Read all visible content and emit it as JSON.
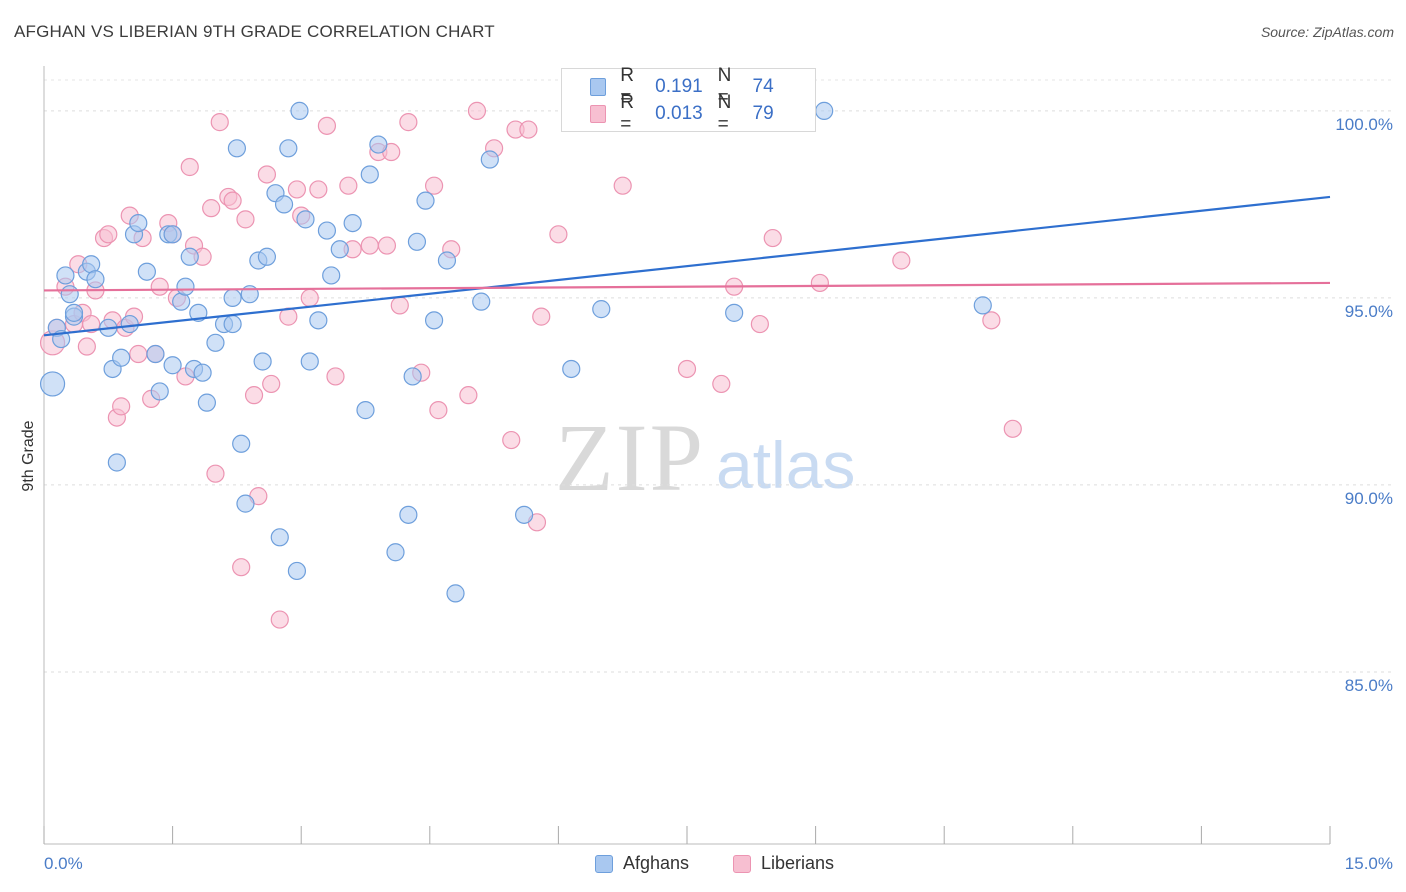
{
  "header": {
    "title": "AFGHAN VS LIBERIAN 9TH GRADE CORRELATION CHART",
    "source": "Source: ZipAtlas.com"
  },
  "watermark": {
    "zip": "ZIP",
    "atlas": "atlas"
  },
  "legend": {
    "afghans": {
      "r_label": "R =",
      "r_value": "0.191",
      "n_label": "N =",
      "n_value": "74"
    },
    "liberians": {
      "r_label": "R =",
      "r_value": "0.013",
      "n_label": "N =",
      "n_value": "79"
    }
  },
  "bottom_legend": {
    "afghans": "Afghans",
    "liberians": "Liberians"
  },
  "colors": {
    "afghans_fill": "#a9c8f0",
    "afghans_stroke": "#6e9fdc",
    "afghans_line": "#2e6fcf",
    "liberians_fill": "#f7bfd1",
    "liberians_stroke": "#ec94b2",
    "liberians_line": "#e5709a",
    "tick_label": "#4a7cc7"
  },
  "chart_data": {
    "type": "scatter",
    "title": "AFGHAN VS LIBERIAN 9TH GRADE CORRELATION CHART",
    "xlabel": "",
    "ylabel": "9th Grade",
    "xlim": [
      0,
      15
    ],
    "ylim": [
      80.4,
      101.2
    ],
    "x_tick_labels": [
      "0.0%",
      "15.0%"
    ],
    "y_ticks": [
      85,
      90,
      95,
      100
    ],
    "y_tick_labels": [
      "85.0%",
      "90.0%",
      "95.0%",
      "100.0%"
    ],
    "grid": true,
    "legend_position": "top-center",
    "series": [
      {
        "name": "Afghans",
        "trend": [
          [
            0,
            94.0
          ],
          [
            15,
            97.7
          ]
        ],
        "points": [
          [
            0.1,
            92.7
          ],
          [
            0.15,
            94.2
          ],
          [
            0.2,
            93.9
          ],
          [
            0.25,
            95.6
          ],
          [
            0.3,
            95.1
          ],
          [
            0.35,
            94.5
          ],
          [
            0.5,
            95.7
          ],
          [
            0.55,
            95.9
          ],
          [
            0.6,
            95.5
          ],
          [
            0.75,
            94.2
          ],
          [
            0.8,
            93.1
          ],
          [
            0.9,
            93.4
          ],
          [
            1.0,
            94.3
          ],
          [
            1.05,
            96.7
          ],
          [
            1.1,
            97.0
          ],
          [
            1.2,
            95.7
          ],
          [
            1.3,
            93.5
          ],
          [
            1.35,
            92.5
          ],
          [
            1.45,
            96.7
          ],
          [
            1.5,
            93.2
          ],
          [
            1.6,
            94.9
          ],
          [
            1.65,
            95.3
          ],
          [
            1.7,
            96.1
          ],
          [
            1.75,
            93.1
          ],
          [
            1.8,
            94.6
          ],
          [
            1.85,
            93.0
          ],
          [
            1.9,
            92.2
          ],
          [
            2.0,
            93.8
          ],
          [
            2.1,
            94.3
          ],
          [
            2.2,
            94.3
          ],
          [
            2.25,
            99.0
          ],
          [
            2.3,
            91.1
          ],
          [
            2.35,
            89.5
          ],
          [
            2.4,
            95.1
          ],
          [
            2.5,
            96.0
          ],
          [
            2.55,
            93.3
          ],
          [
            2.6,
            96.1
          ],
          [
            2.7,
            97.8
          ],
          [
            2.75,
            88.6
          ],
          [
            2.8,
            97.5
          ],
          [
            2.85,
            99.0
          ],
          [
            2.95,
            87.7
          ],
          [
            2.98,
            100.0
          ],
          [
            3.1,
            93.3
          ],
          [
            3.2,
            94.4
          ],
          [
            3.3,
            96.8
          ],
          [
            3.35,
            95.6
          ],
          [
            3.45,
            96.3
          ],
          [
            3.6,
            97.0
          ],
          [
            3.75,
            92.0
          ],
          [
            3.8,
            98.3
          ],
          [
            3.9,
            99.1
          ],
          [
            4.1,
            88.2
          ],
          [
            4.25,
            89.2
          ],
          [
            4.3,
            92.9
          ],
          [
            4.35,
            96.5
          ],
          [
            4.45,
            97.6
          ],
          [
            4.55,
            94.4
          ],
          [
            4.7,
            96.0
          ],
          [
            4.8,
            87.1
          ],
          [
            5.1,
            94.9
          ],
          [
            5.2,
            98.7
          ],
          [
            5.6,
            89.2
          ],
          [
            6.15,
            93.1
          ],
          [
            6.5,
            94.7
          ],
          [
            7.4,
            100.0
          ],
          [
            8.05,
            94.6
          ],
          [
            9.1,
            100.0
          ],
          [
            10.95,
            94.8
          ],
          [
            0.85,
            90.6
          ],
          [
            1.5,
            96.7
          ],
          [
            3.05,
            97.1
          ],
          [
            0.35,
            94.6
          ],
          [
            2.2,
            95.0
          ]
        ]
      },
      {
        "name": "Liberians",
        "trend": [
          [
            0,
            95.2
          ],
          [
            15,
            95.4
          ]
        ],
        "points": [
          [
            0.1,
            93.8
          ],
          [
            0.15,
            94.2
          ],
          [
            0.25,
            95.3
          ],
          [
            0.35,
            94.3
          ],
          [
            0.4,
            95.9
          ],
          [
            0.45,
            94.6
          ],
          [
            0.5,
            93.7
          ],
          [
            0.55,
            94.3
          ],
          [
            0.6,
            95.2
          ],
          [
            0.7,
            96.6
          ],
          [
            0.75,
            96.7
          ],
          [
            0.8,
            94.4
          ],
          [
            0.85,
            91.8
          ],
          [
            0.9,
            92.1
          ],
          [
            0.95,
            94.2
          ],
          [
            1.0,
            97.2
          ],
          [
            1.05,
            94.5
          ],
          [
            1.1,
            93.5
          ],
          [
            1.15,
            96.6
          ],
          [
            1.25,
            92.3
          ],
          [
            1.3,
            93.5
          ],
          [
            1.35,
            95.3
          ],
          [
            1.45,
            97.0
          ],
          [
            1.5,
            96.7
          ],
          [
            1.55,
            95.0
          ],
          [
            1.65,
            92.9
          ],
          [
            1.7,
            98.5
          ],
          [
            1.75,
            96.4
          ],
          [
            1.85,
            96.1
          ],
          [
            1.95,
            97.4
          ],
          [
            2.0,
            90.3
          ],
          [
            2.05,
            99.7
          ],
          [
            2.15,
            97.7
          ],
          [
            2.2,
            97.6
          ],
          [
            2.3,
            87.8
          ],
          [
            2.35,
            97.1
          ],
          [
            2.45,
            92.4
          ],
          [
            2.5,
            89.7
          ],
          [
            2.6,
            98.3
          ],
          [
            2.65,
            92.7
          ],
          [
            2.75,
            86.4
          ],
          [
            2.85,
            94.5
          ],
          [
            2.95,
            97.9
          ],
          [
            3.0,
            97.2
          ],
          [
            3.1,
            95.0
          ],
          [
            3.2,
            97.9
          ],
          [
            3.3,
            99.6
          ],
          [
            3.4,
            92.9
          ],
          [
            3.55,
            98.0
          ],
          [
            3.6,
            96.3
          ],
          [
            3.8,
            96.4
          ],
          [
            3.9,
            98.9
          ],
          [
            4.0,
            96.4
          ],
          [
            4.05,
            98.9
          ],
          [
            4.15,
            94.8
          ],
          [
            4.25,
            99.7
          ],
          [
            4.4,
            93.0
          ],
          [
            4.55,
            98.0
          ],
          [
            4.6,
            92.0
          ],
          [
            4.75,
            96.3
          ],
          [
            4.95,
            92.4
          ],
          [
            5.05,
            100.0
          ],
          [
            5.25,
            99.0
          ],
          [
            5.45,
            91.2
          ],
          [
            5.5,
            99.5
          ],
          [
            5.65,
            99.5
          ],
          [
            5.75,
            89.0
          ],
          [
            5.8,
            94.5
          ],
          [
            6.0,
            96.7
          ],
          [
            6.75,
            98.0
          ],
          [
            7.5,
            93.1
          ],
          [
            7.9,
            92.7
          ],
          [
            8.05,
            95.3
          ],
          [
            8.35,
            94.3
          ],
          [
            8.5,
            96.6
          ],
          [
            9.05,
            95.4
          ],
          [
            10.0,
            96.0
          ],
          [
            11.05,
            94.4
          ],
          [
            11.3,
            91.5
          ]
        ]
      }
    ]
  }
}
